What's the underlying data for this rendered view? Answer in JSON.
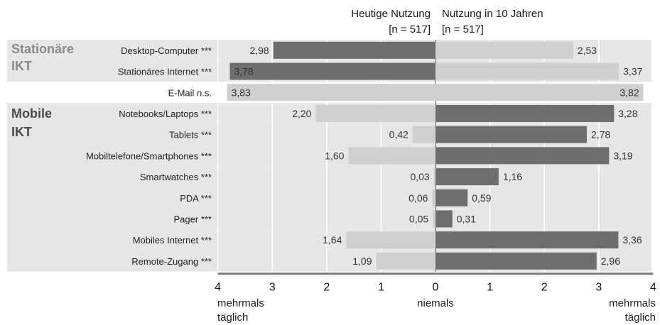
{
  "chart_data": {
    "type": "bar",
    "title": "",
    "series": [
      {
        "name": "Heutige Nutzung",
        "n_label": "[n = 517]"
      },
      {
        "name": "Nutzung in 10 Jahren",
        "n_label": "[n = 517]"
      }
    ],
    "groups": [
      {
        "label_line1": "Stationäre",
        "label_line2": "IKT",
        "color": "#8a8a8a"
      },
      {
        "label_line1": "Mobile",
        "label_line2": "IKT",
        "color": "#4a4a4a"
      }
    ],
    "rows": [
      {
        "category": "Desktop-Computer ***",
        "group": 0,
        "today": 2.98,
        "today_label": "2,98",
        "future": 2.53,
        "future_label": "2,53",
        "today_dark": true,
        "future_dark": false
      },
      {
        "category": "Stationäres Internet ***",
        "group": 0,
        "today": 3.78,
        "today_label": "3,78",
        "future": 3.37,
        "future_label": "3,37",
        "today_dark": true,
        "future_dark": false
      },
      {
        "category": "E-Mail n.s.",
        "group": -1,
        "today": 3.83,
        "today_label": "3,83",
        "future": 3.82,
        "future_label": "3,82",
        "today_dark": false,
        "future_dark": false
      },
      {
        "category": "Notebooks/Laptops ***",
        "group": 1,
        "today": 2.2,
        "today_label": "2,20",
        "future": 3.28,
        "future_label": "3,28",
        "today_dark": false,
        "future_dark": true
      },
      {
        "category": "Tablets ***",
        "group": 1,
        "today": 0.42,
        "today_label": "0,42",
        "future": 2.78,
        "future_label": "2,78",
        "today_dark": false,
        "future_dark": true
      },
      {
        "category": "Mobiltelefone/Smartphones ***",
        "group": 1,
        "today": 1.6,
        "today_label": "1,60",
        "future": 3.19,
        "future_label": "3,19",
        "today_dark": false,
        "future_dark": true
      },
      {
        "category": "Smartwatches ***",
        "group": 1,
        "today": 0.03,
        "today_label": "0,03",
        "future": 1.16,
        "future_label": "1,16",
        "today_dark": false,
        "future_dark": true
      },
      {
        "category": "PDA ***",
        "group": 1,
        "today": 0.06,
        "today_label": "0,06",
        "future": 0.59,
        "future_label": "0,59",
        "today_dark": false,
        "future_dark": true
      },
      {
        "category": "Pager ***",
        "group": 1,
        "today": 0.05,
        "today_label": "0,05",
        "future": 0.31,
        "future_label": "0,31",
        "today_dark": false,
        "future_dark": true
      },
      {
        "category": "Mobiles Internet ***",
        "group": 1,
        "today": 1.64,
        "today_label": "1,64",
        "future": 3.36,
        "future_label": "3,36",
        "today_dark": false,
        "future_dark": true
      },
      {
        "category": "Remote-Zugang ***",
        "group": 1,
        "today": 1.09,
        "today_label": "1,09",
        "future": 2.96,
        "future_label": "2,96",
        "today_dark": false,
        "future_dark": true
      }
    ],
    "x_ticks_left": [
      "4",
      "3",
      "2",
      "1"
    ],
    "x_ticks_right": [
      "0",
      "1",
      "2",
      "3",
      "4"
    ],
    "xlim": [
      0,
      4
    ],
    "axis_labels": {
      "left_line1": "mehrmals",
      "left_line2": "täglich",
      "center": "niemals",
      "right_line1": "mehrmals",
      "right_line2": "täglich"
    },
    "grid": true,
    "colors": {
      "dark_bar": "#6e6e6e",
      "light_bar": "#cfcfcf",
      "panel_bg": "#e6e6e6",
      "grid": "#ffffff",
      "axis": "#7a7a7a"
    }
  }
}
